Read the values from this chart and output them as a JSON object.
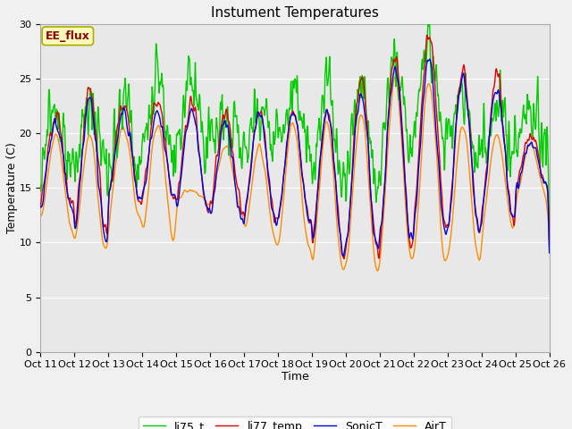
{
  "title": "Instument Temperatures",
  "xlabel": "Time",
  "ylabel": "Temperature (C)",
  "ylim": [
    0,
    30
  ],
  "annotation": "EE_flux",
  "legend_labels": [
    "li75_t",
    "li77_temp",
    "SonicT",
    "AirT"
  ],
  "colors": [
    "#dd0000",
    "#0000dd",
    "#00cc00",
    "#ff8c00"
  ],
  "xtick_labels": [
    "Oct 11",
    "Oct 12",
    "Oct 13",
    "Oct 14",
    "Oct 15",
    "Oct 16",
    "Oct 17",
    "Oct 18",
    "Oct 19",
    "Oct 20",
    "Oct 21",
    "Oct 22",
    "Oct 23",
    "Oct 24",
    "Oct 25",
    "Oct 26"
  ],
  "bg_color": "#e8e8e8",
  "grid_color": "#ffffff",
  "fig_bg": "#f0f0f0"
}
